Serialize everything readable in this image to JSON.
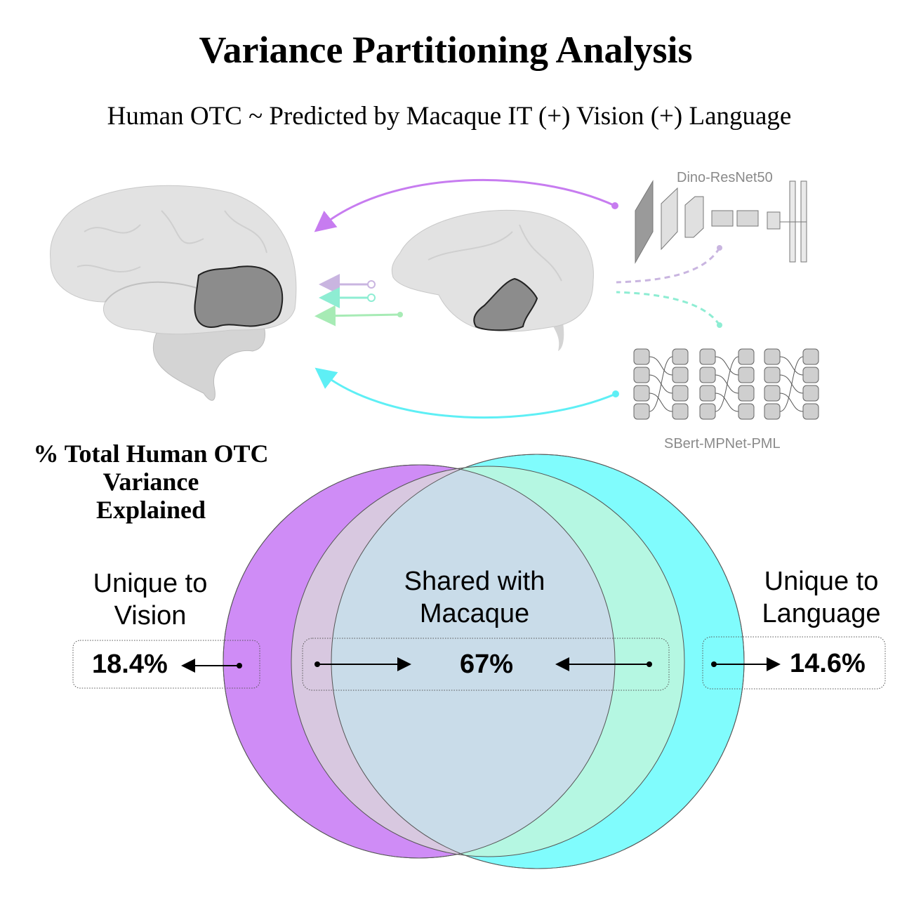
{
  "title": "Variance Partitioning Analysis",
  "subtitle": "Human OTC ~ Predicted by Macaque IT (+) Vision (+) Language",
  "models": {
    "vision": "Dino-ResNet50",
    "language": "SBert-MPNet-PML"
  },
  "venn": {
    "heading_lines": [
      "% Total Human OTC",
      "Variance",
      "Explained"
    ],
    "unique_vision": {
      "label_lines": [
        "Unique to",
        "Vision"
      ],
      "value": "18.4%"
    },
    "shared_macaque": {
      "label_lines": [
        "Shared with",
        "Macaque"
      ],
      "value": "67%"
    },
    "unique_language": {
      "label_lines": [
        "Unique to",
        "Language"
      ],
      "value": "14.6%"
    }
  },
  "colors": {
    "vision": "#CF8CF6",
    "language": "#80FCFD",
    "macaque_vision_overlap": "#D8C8E0",
    "macaque_language_overlap": "#B5F7E2",
    "shared_all": "#C9DCE9",
    "brain": "#E2E2E2",
    "roi": "#8C8C8C"
  }
}
